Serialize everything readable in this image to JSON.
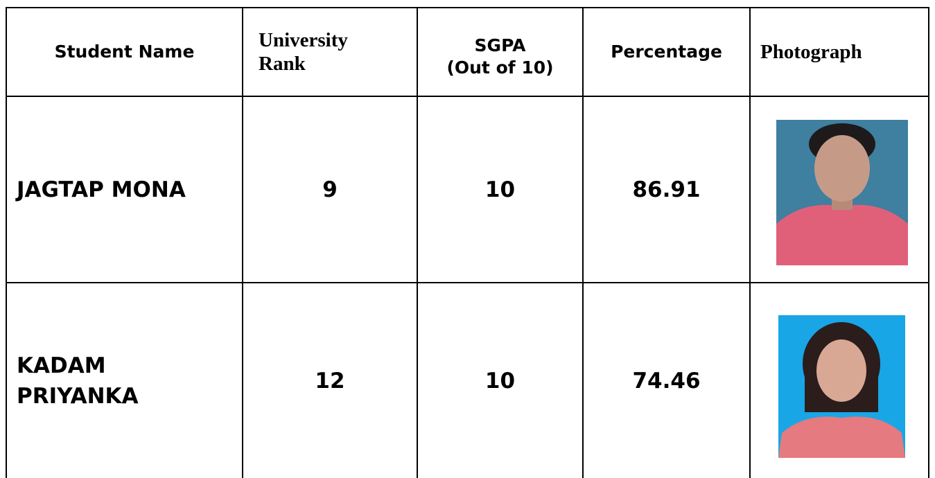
{
  "table": {
    "header": [
      [
        "Student Name"
      ],
      [
        "University",
        "Rank"
      ],
      [
        "SGPA",
        "(Out of 10)"
      ],
      [
        "Percentage"
      ],
      [
        "Photograph"
      ]
    ],
    "rows": [
      {
        "name": [
          "JAGTAP MONA"
        ],
        "rank": 9,
        "sgpa": 10,
        "percentage": 86.91
      },
      {
        "name": [
          "KADAM",
          "PRIYANKA"
        ],
        "rank": 12,
        "sgpa": 10,
        "percentage": 74.46
      }
    ]
  }
}
